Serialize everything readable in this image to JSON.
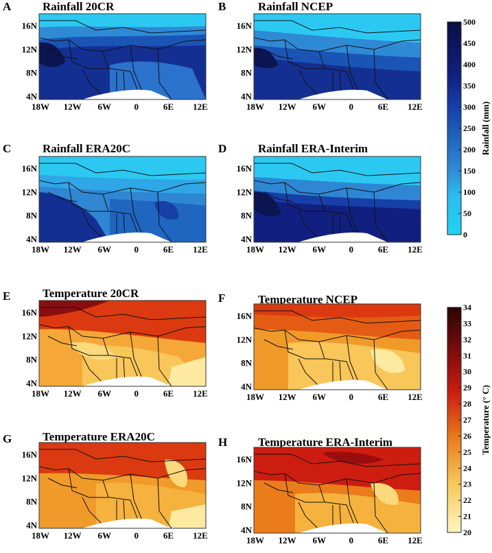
{
  "figure": {
    "panels": [
      {
        "id": "A",
        "title": "Rainfall 20CR",
        "variable": "rainfall",
        "dataset": "20CR"
      },
      {
        "id": "B",
        "title": "Rainfall NCEP",
        "variable": "rainfall",
        "dataset": "NCEP"
      },
      {
        "id": "C",
        "title": "Rainfall ERA20C",
        "variable": "rainfall",
        "dataset": "ERA20C"
      },
      {
        "id": "D",
        "title": "Rainfall ERA-Interim",
        "variable": "rainfall",
        "dataset": "ERA-Interim"
      },
      {
        "id": "E",
        "title": "Temperature 20CR",
        "variable": "temperature",
        "dataset": "20CR"
      },
      {
        "id": "F",
        "title": "Temperature NCEP",
        "variable": "temperature",
        "dataset": "NCEP"
      },
      {
        "id": "G",
        "title": "Temperature ERA20C",
        "variable": "temperature",
        "dataset": "ERA20C"
      },
      {
        "id": "H",
        "title": "Temperature ERA-Interim",
        "variable": "temperature",
        "dataset": "ERA-Interim"
      }
    ],
    "x_ticks": [
      "18W",
      "12W",
      "6W",
      "0",
      "6E",
      "12E"
    ],
    "y_ticks": [
      "16N",
      "12N",
      "8N",
      "4N"
    ]
  },
  "chart_data": [
    {
      "type": "heatmap",
      "title": "Rainfall",
      "colorbar_label": "Rainfall (mm)",
      "colorbar_ticks": [
        "0",
        "50",
        "100",
        "150",
        "200",
        "250",
        "300",
        "350",
        "400",
        "450",
        "500"
      ],
      "range": [
        0,
        500
      ],
      "colors": [
        "#1fd3f5",
        "#2dbcef",
        "#3aa3e3",
        "#2f86d3",
        "#1f66c0",
        "#163fa8",
        "#152e94",
        "#112080",
        "#0c1668",
        "#0a0f45"
      ],
      "x": [
        "18W",
        "12W",
        "6W",
        "0",
        "6E",
        "12E"
      ],
      "y": [
        "16N",
        "12N",
        "8N",
        "4N"
      ],
      "panels": [
        "A",
        "B",
        "C",
        "D"
      ]
    },
    {
      "type": "heatmap",
      "title": "Temperature",
      "colorbar_label": "Temperature (° C)",
      "colorbar_ticks": [
        "20",
        "21",
        "22",
        "23",
        "24",
        "25",
        "26",
        "27",
        "28",
        "29",
        "30",
        "31",
        "32",
        "33",
        "34"
      ],
      "range": [
        20,
        34
      ],
      "colors": [
        "#fff6c2",
        "#fde9a0",
        "#fbd97c",
        "#f8c659",
        "#f5b23e",
        "#f09a2a",
        "#ea7c1c",
        "#e45b14",
        "#db3a10",
        "#cc1d10",
        "#b8120f",
        "#9a0d0e",
        "#770b0b",
        "#4c0a08"
      ],
      "x": [
        "18W",
        "12W",
        "6W",
        "0",
        "6E",
        "12E"
      ],
      "y": [
        "16N",
        "12N",
        "8N",
        "4N"
      ],
      "panels": [
        "E",
        "F",
        "G",
        "H"
      ]
    }
  ]
}
